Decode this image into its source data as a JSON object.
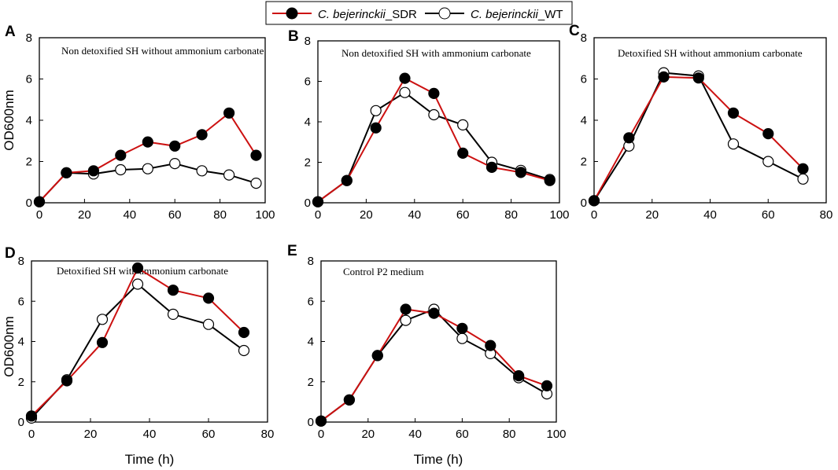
{
  "legend": {
    "series": [
      {
        "name_italic": "C. bejerinckii",
        "name_rest": "_SDR",
        "color": "#cc1111",
        "marker": "filled-circle"
      },
      {
        "name_italic": "C. bejerinckii",
        "name_rest": "_WT",
        "color": "#000000",
        "marker": "open-circle"
      }
    ]
  },
  "chart_data": [
    {
      "type": "line",
      "panel": "A",
      "title": "Non detoxified SH without ammonium carbonate",
      "xlabel": "",
      "ylabel": "OD600nm",
      "xlim": [
        0,
        100
      ],
      "ylim": [
        0,
        8
      ],
      "xticks": [
        0,
        20,
        40,
        60,
        80,
        100
      ],
      "yticks": [
        0,
        2,
        4,
        6,
        8
      ],
      "series": [
        {
          "name": "C. bejerinckii_SDR",
          "x": [
            0,
            12,
            24,
            36,
            48,
            60,
            72,
            84,
            96
          ],
          "y": [
            0.05,
            1.45,
            1.55,
            2.3,
            2.95,
            2.75,
            3.3,
            4.35,
            2.3
          ]
        },
        {
          "name": "C. bejerinckii_WT",
          "x": [
            0,
            12,
            24,
            36,
            48,
            60,
            72,
            84,
            96
          ],
          "y": [
            0.05,
            1.45,
            1.4,
            1.6,
            1.65,
            1.9,
            1.55,
            1.35,
            0.95
          ]
        }
      ]
    },
    {
      "type": "line",
      "panel": "B",
      "title": "Non detoxified SH with ammonium carbonate",
      "xlabel": "",
      "ylabel": "",
      "xlim": [
        0,
        100
      ],
      "ylim": [
        0,
        8
      ],
      "xticks": [
        0,
        20,
        40,
        60,
        80,
        100
      ],
      "yticks": [
        0,
        2,
        4,
        6,
        8
      ],
      "series": [
        {
          "name": "C. bejerinckii_SDR",
          "x": [
            0,
            12,
            24,
            36,
            48,
            60,
            72,
            84,
            96
          ],
          "y": [
            0.05,
            1.1,
            3.7,
            6.15,
            5.4,
            2.45,
            1.75,
            1.5,
            1.1
          ]
        },
        {
          "name": "C. bejerinckii_WT",
          "x": [
            0,
            12,
            24,
            36,
            48,
            60,
            72,
            84,
            96
          ],
          "y": [
            0.05,
            1.1,
            4.55,
            5.45,
            4.35,
            3.85,
            2.0,
            1.6,
            1.15
          ]
        }
      ]
    },
    {
      "type": "line",
      "panel": "C",
      "title": "Detoxified SH without ammonium carbonate",
      "xlabel": "",
      "ylabel": "",
      "xlim": [
        0,
        80
      ],
      "ylim": [
        0,
        8
      ],
      "xticks": [
        0,
        20,
        40,
        60,
        80
      ],
      "yticks": [
        0,
        2,
        4,
        6,
        8
      ],
      "series": [
        {
          "name": "C. bejerinckii_SDR",
          "x": [
            0,
            12,
            24,
            36,
            48,
            60,
            72
          ],
          "y": [
            0.1,
            3.15,
            6.1,
            6.05,
            4.35,
            3.35,
            1.65
          ]
        },
        {
          "name": "C. bejerinckii_WT",
          "x": [
            0,
            12,
            24,
            36,
            48,
            60,
            72
          ],
          "y": [
            0.1,
            2.75,
            6.3,
            6.15,
            2.85,
            2.0,
            1.15
          ]
        }
      ]
    },
    {
      "type": "line",
      "panel": "D",
      "title": "Detoxified SH with ammonium carbonate",
      "xlabel": "Time (h)",
      "ylabel": "OD600nm",
      "xlim": [
        0,
        80
      ],
      "ylim": [
        0,
        8
      ],
      "xticks": [
        0,
        20,
        40,
        60,
        80
      ],
      "yticks": [
        0,
        2,
        4,
        6,
        8
      ],
      "series": [
        {
          "name": "C. bejerinckii_SDR",
          "x": [
            0,
            12,
            24,
            36,
            48,
            60,
            72
          ],
          "y": [
            0.3,
            2.05,
            3.95,
            7.65,
            6.55,
            6.15,
            4.45
          ]
        },
        {
          "name": "C. bejerinckii_WT",
          "x": [
            0,
            12,
            24,
            36,
            48,
            60,
            72
          ],
          "y": [
            0.2,
            2.1,
            5.1,
            6.85,
            5.35,
            4.85,
            3.55
          ]
        }
      ]
    },
    {
      "type": "line",
      "panel": "E",
      "title": "Control P2 medium",
      "xlabel": "Time (h)",
      "ylabel": "",
      "xlim": [
        0,
        100
      ],
      "ylim": [
        0,
        8
      ],
      "xticks": [
        0,
        20,
        40,
        60,
        80,
        100
      ],
      "yticks": [
        0,
        2,
        4,
        6,
        8
      ],
      "series": [
        {
          "name": "C. bejerinckii_SDR",
          "x": [
            0,
            12,
            24,
            36,
            48,
            60,
            72,
            84,
            96
          ],
          "y": [
            0.05,
            1.1,
            3.3,
            5.6,
            5.4,
            4.65,
            3.8,
            2.3,
            1.8
          ]
        },
        {
          "name": "C. bejerinckii_WT",
          "x": [
            0,
            12,
            24,
            36,
            48,
            60,
            72,
            84,
            96
          ],
          "y": [
            0.05,
            1.1,
            3.3,
            5.05,
            5.6,
            4.15,
            3.4,
            2.2,
            1.4
          ]
        }
      ]
    }
  ]
}
